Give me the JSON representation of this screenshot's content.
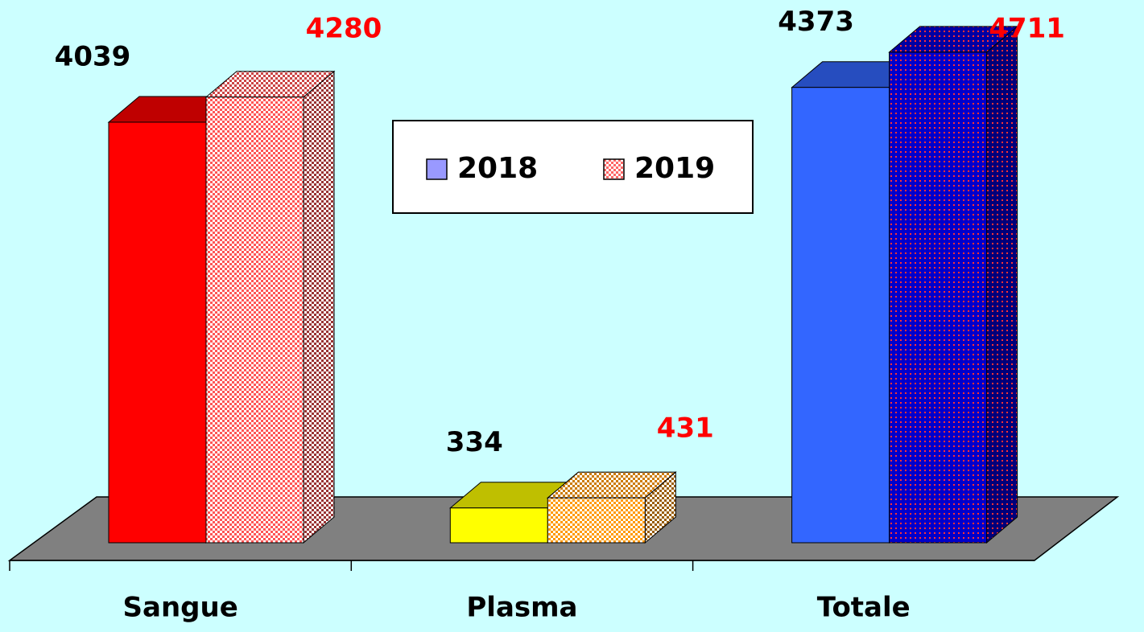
{
  "chart_data": {
    "type": "bar3d",
    "categories": [
      "Sangue",
      "Plasma",
      "Totale"
    ],
    "series": [
      {
        "name": "2018",
        "color": "#9999ff",
        "label_color": "#000000",
        "colors": [
          "#ff0000",
          "#ffff00",
          "#3366ff"
        ],
        "values": [
          4039,
          334,
          4373
        ]
      },
      {
        "name": "2019",
        "color": "#ff6666",
        "label_color": "#ff0000",
        "colors": [
          "#ff5555",
          "#ff9900",
          "#0000cc"
        ],
        "values": [
          4280,
          431,
          4711
        ]
      }
    ],
    "ylim": [
      0,
      5000
    ],
    "legend": "top-center"
  }
}
